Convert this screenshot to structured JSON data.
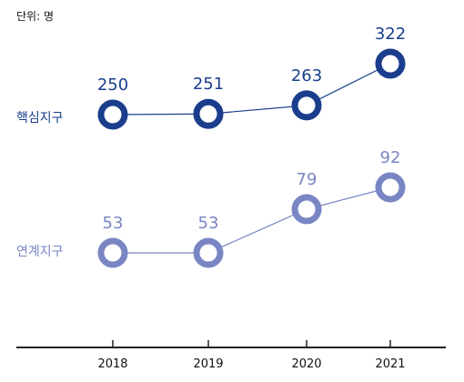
{
  "unit_label": "단위: 명",
  "colors": {
    "core": "#1a3e8c",
    "link": "#7a86c4",
    "axis": "#222222"
  },
  "chart_data": {
    "type": "line",
    "categories": [
      "2018",
      "2019",
      "2020",
      "2021"
    ],
    "series": [
      {
        "name": "핵심지구",
        "values": [
          250,
          251,
          263,
          322
        ],
        "labels": [
          "250",
          "251",
          "263",
          "322"
        ]
      },
      {
        "name": "연계지구",
        "values": [
          53,
          53,
          79,
          92
        ],
        "labels": [
          "53",
          "53",
          "79",
          "92"
        ]
      }
    ],
    "unit": "단위: 명",
    "grid": false,
    "markers": "hollow-circle",
    "legend": "left"
  }
}
